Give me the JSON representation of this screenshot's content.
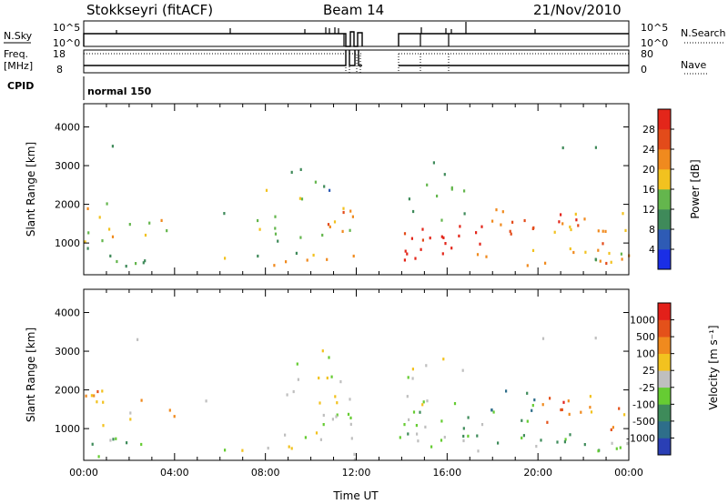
{
  "header": {
    "station": "Stokkseyri (fitACF)",
    "beam": "Beam 14",
    "date": "21/Nov/2010"
  },
  "top_strip": {
    "nsky_label": "N.Sky",
    "nsky_ticks": [
      "10^5",
      "10^0"
    ],
    "nsearch_label": "N.Search",
    "nsearch_ticks": [
      "10^5",
      "10^0"
    ],
    "freq_label": "Freq.",
    "freq_unit": "[MHz]",
    "freq_ticks": [
      "18",
      "8"
    ],
    "nave_label": "Nave",
    "nave_ticks": [
      "80",
      "0"
    ],
    "cpid_label": "CPID",
    "cpid_value": "normal 150"
  },
  "chart_data": [
    {
      "type": "heatmap",
      "quantity": "Power",
      "ylabel": "Slant Range [km]",
      "xlabel": "",
      "x_range_hours": [
        0,
        24
      ],
      "ylim": [
        180,
        4600
      ],
      "yticks": [
        1000,
        2000,
        3000,
        4000
      ],
      "colorbar": {
        "title": "Power [dB]",
        "ticks": [
          "4",
          "8",
          "12",
          "16",
          "20",
          "24",
          "28"
        ],
        "colors": [
          "#1a2ee6",
          "#2e5bb5",
          "#3f8a5a",
          "#64b64d",
          "#f2c21f",
          "#f08a1e",
          "#e34b1a",
          "#e3261a"
        ]
      }
    },
    {
      "type": "heatmap",
      "quantity": "Velocity",
      "ylabel": "Slant Range [km]",
      "xlabel": "Time UT",
      "x_range_hours": [
        0,
        24
      ],
      "ylim": [
        180,
        4600
      ],
      "yticks": [
        1000,
        2000,
        3000,
        4000
      ],
      "xticks": [
        "00:00",
        "04:00",
        "08:00",
        "12:00",
        "16:00",
        "20:00",
        "00:00"
      ],
      "colorbar": {
        "title": "Velocity [m s⁻¹]",
        "ticks": [
          "1000",
          "500",
          "100",
          "25",
          "-25",
          "-100",
          "-500",
          "-1000"
        ],
        "colors": [
          "#2a3fb5",
          "#2e6e8a",
          "#3e8b5a",
          "#66cc33",
          "#bfbfbf",
          "#f2c21f",
          "#f08a1e",
          "#e4511a",
          "#e3201a"
        ]
      }
    }
  ]
}
